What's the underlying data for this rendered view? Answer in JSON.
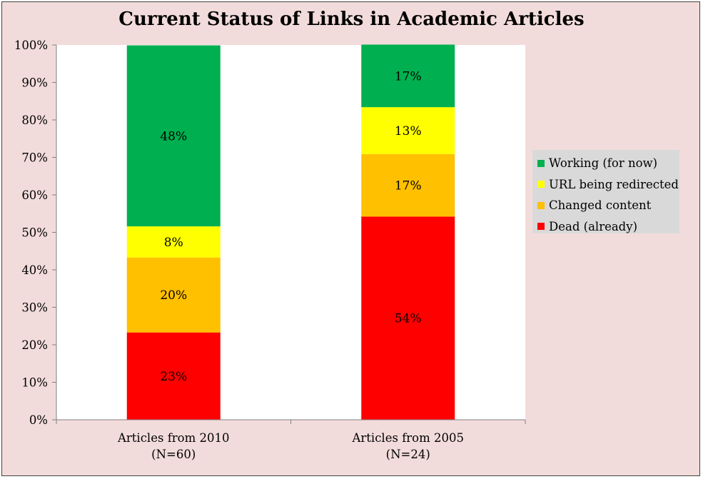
{
  "chart_data": {
    "type": "bar",
    "stacked": true,
    "title": "Current Status of Links in Academic Articles",
    "xlabel": "",
    "ylabel": "",
    "ylim": [
      0,
      100
    ],
    "y_tick_labels": [
      "0%",
      "10%",
      "20%",
      "30%",
      "40%",
      "50%",
      "60%",
      "70%",
      "80%",
      "90%",
      "100%"
    ],
    "grid": false,
    "legend_position": "right",
    "categories": [
      {
        "line1": "Articles from 2010",
        "line2": "(N=60)"
      },
      {
        "line1": "Articles from 2005",
        "line2": "(N=24)"
      }
    ],
    "series": [
      {
        "name": "Dead (already)",
        "color": "#ff0000",
        "values": [
          23.3,
          54.2
        ],
        "labels": [
          "23%",
          "54%"
        ]
      },
      {
        "name": "Changed content",
        "color": "#ffc000",
        "values": [
          20.0,
          16.7
        ],
        "labels": [
          "20%",
          "17%"
        ]
      },
      {
        "name": "URL being redirected",
        "color": "#ffff00",
        "values": [
          8.3,
          12.5
        ],
        "labels": [
          "8%",
          "13%"
        ]
      },
      {
        "name": "Working (for now)",
        "color": "#00b050",
        "values": [
          48.3,
          16.7
        ],
        "labels": [
          "48%",
          "17%"
        ]
      }
    ],
    "legend_order": [
      "Working (for now)",
      "URL being redirected",
      "Changed content",
      "Dead (already)"
    ]
  }
}
